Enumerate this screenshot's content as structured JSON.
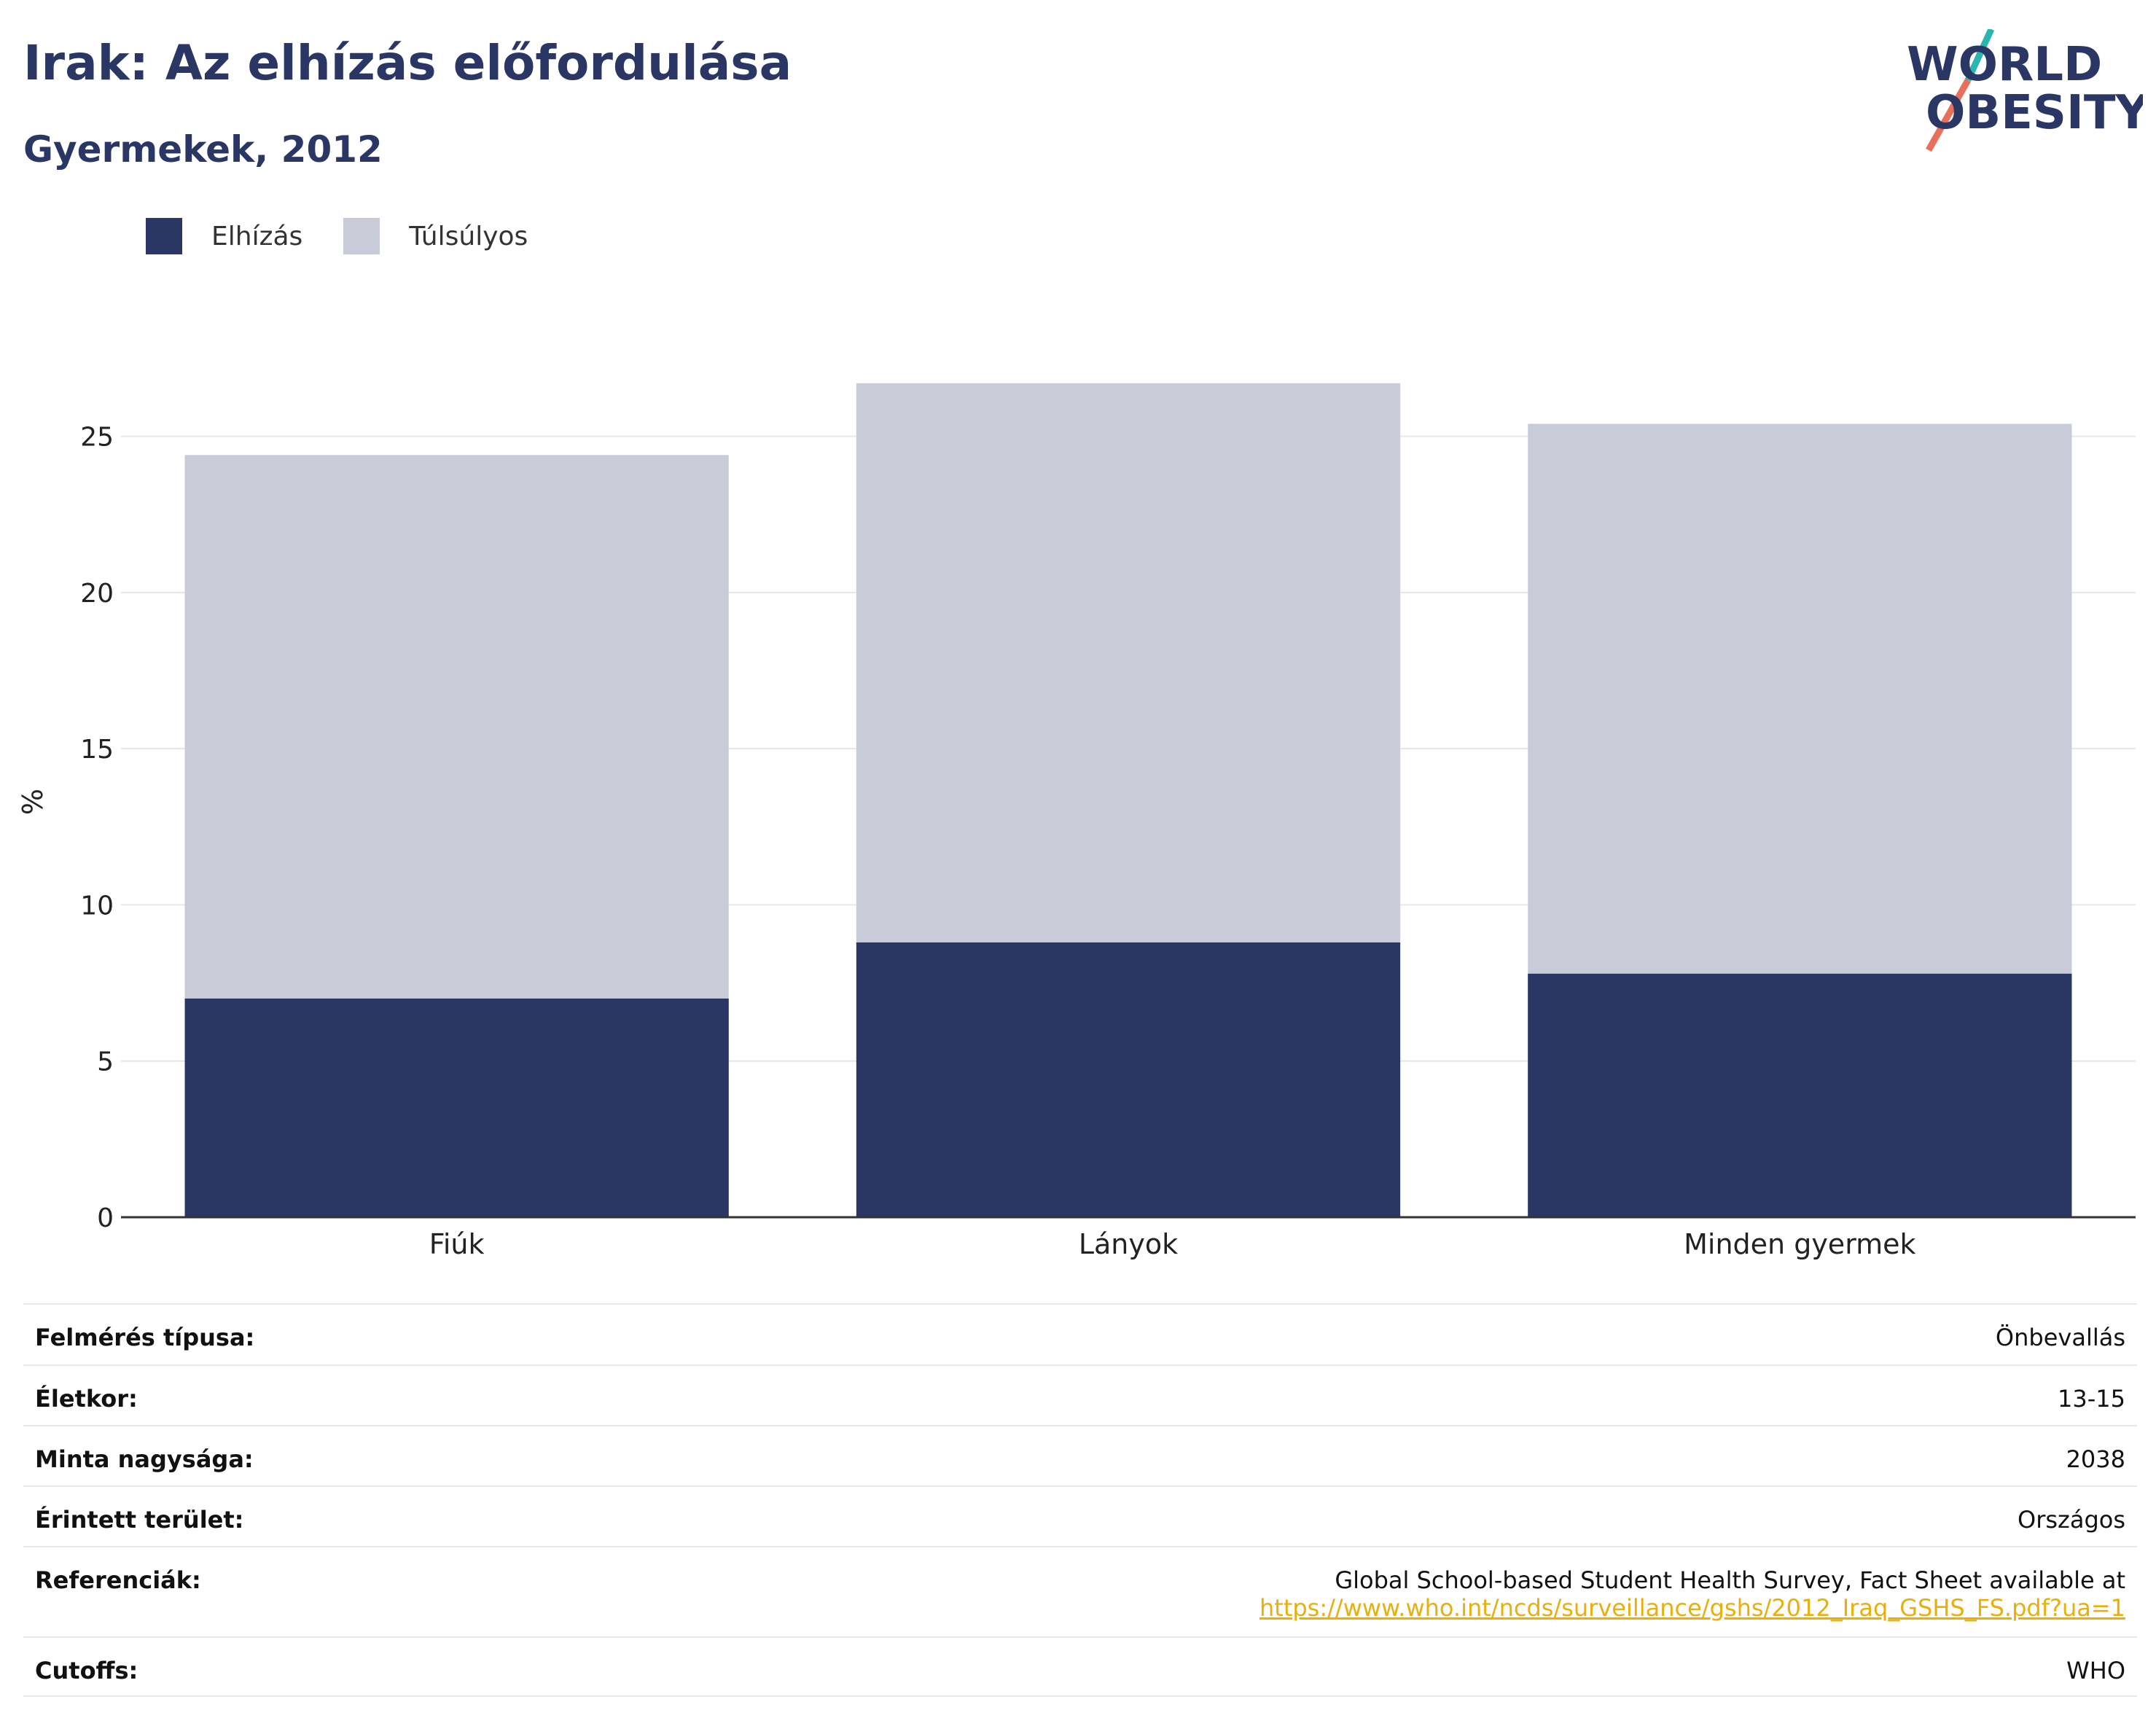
{
  "header": {
    "title": "Irak: Az elhízás előfordulása",
    "subtitle": "Gyermekek, 2012"
  },
  "logo": {
    "line1": "WORLD",
    "line2": "OBESITY",
    "colors": {
      "text": "#2a3663",
      "slash_top": "#2bb5b0",
      "slash_bottom": "#e8705a"
    }
  },
  "chart_data": {
    "type": "bar",
    "stacked": true,
    "categories": [
      "Fiúk",
      "Lányok",
      "Minden gyermek"
    ],
    "series": [
      {
        "name": "Elhízás",
        "color": "#2a3663",
        "values": [
          7.0,
          8.8,
          7.8
        ]
      },
      {
        "name": "Túlsúlyos",
        "color": "#c9ccd8",
        "values": [
          17.4,
          17.9,
          17.6
        ]
      }
    ],
    "ylabel": "%",
    "ylim": [
      0,
      28
    ],
    "yticks": [
      0,
      5,
      10,
      15,
      20,
      25
    ],
    "grid": true,
    "legend": "top-left"
  },
  "info": {
    "rows": [
      {
        "label": "Felmérés típusa:",
        "value": "Önbevallás"
      },
      {
        "label": "Életkor:",
        "value": "13-15"
      },
      {
        "label": "Minta nagysága:",
        "value": "2038"
      },
      {
        "label": "Érintett terület:",
        "value": "Országos"
      },
      {
        "label": "Referenciák:",
        "value": "Global School-based Student Health Survey, Fact Sheet available at",
        "link": "https://www.who.int/ncds/surveillance/gshs/2012_Iraq_GSHS_FS.pdf?ua=1"
      },
      {
        "label": "Cutoffs:",
        "value": "WHO"
      }
    ]
  }
}
